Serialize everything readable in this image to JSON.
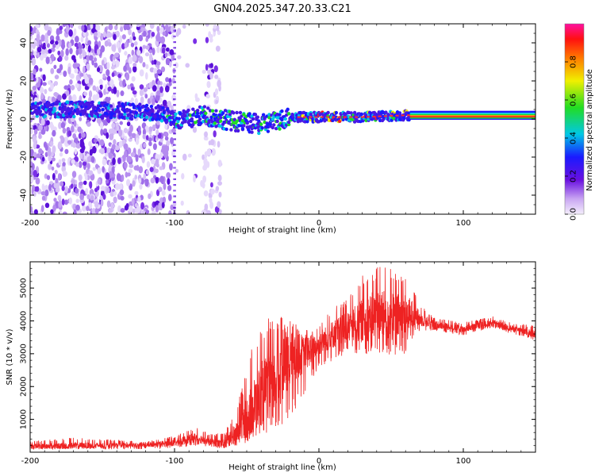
{
  "chart_data": [
    {
      "type": "heatmap",
      "title": "GN04.2025.347.20.33.C21",
      "xlabel": "Height of straight line (km)",
      "ylabel": "Frequency (Hz)",
      "xlim": [
        -200,
        150
      ],
      "ylim": [
        -50,
        50
      ],
      "xticks": [
        "-200",
        "-100",
        "0",
        "100"
      ],
      "xtick_values": [
        -200,
        -100,
        0,
        100
      ],
      "yticks": [
        "40",
        "20",
        "0",
        "-20",
        "-40"
      ],
      "ytick_values": [
        40,
        20,
        0,
        -20,
        -40
      ],
      "colorbar": {
        "label": "Normalized spectral amplitude",
        "range": [
          0,
          1
        ],
        "ticks": [
          "0.0",
          "0.2",
          "0.4",
          "0.6",
          "0.8"
        ],
        "tick_values": [
          0,
          0.2,
          0.4,
          0.6,
          0.8
        ],
        "colormap": "rainbow (violet -> red -> magenta)"
      },
      "features": {
        "noise_region_km": [
          -200,
          -68
        ],
        "trace_frequency_hz": [
          {
            "x": -200,
            "f": 5
          },
          {
            "x": -150,
            "f": 5
          },
          {
            "x": -110,
            "f": 3
          },
          {
            "x": -95,
            "f": -1
          },
          {
            "x": -80,
            "f": 2
          },
          {
            "x": -60,
            "f": -1
          },
          {
            "x": -40,
            "f": -3
          },
          {
            "x": -20,
            "f": 1
          },
          {
            "x": 0,
            "f": 1
          },
          {
            "x": 30,
            "f": 1
          },
          {
            "x": 60,
            "f": 2
          },
          {
            "x": 150,
            "f": 1
          }
        ],
        "steady_band_km": [
          63,
          150
        ]
      }
    },
    {
      "type": "line",
      "xlabel": "Height of straight line (km)",
      "ylabel": "SNR (10 * v/v)",
      "xlim": [
        -200,
        150
      ],
      "ylim": [
        0,
        5800
      ],
      "xticks": [
        "-200",
        "-100",
        "0",
        "100"
      ],
      "xtick_values": [
        -200,
        -100,
        0,
        100
      ],
      "yticks": [
        "5000",
        "4000",
        "3000",
        "2000",
        "1000"
      ],
      "ytick_values": [
        5000,
        4000,
        3000,
        2000,
        1000
      ],
      "series": [
        {
          "name": "SNR",
          "color": "#ee2222",
          "envelope": [
            {
              "x": -200,
              "lo": 80,
              "mean": 180,
              "hi": 330
            },
            {
              "x": -170,
              "lo": 90,
              "mean": 200,
              "hi": 450
            },
            {
              "x": -120,
              "lo": 90,
              "mean": 220,
              "hi": 320
            },
            {
              "x": -100,
              "lo": 100,
              "mean": 280,
              "hi": 500
            },
            {
              "x": -85,
              "lo": 200,
              "mean": 450,
              "hi": 750
            },
            {
              "x": -75,
              "lo": 150,
              "mean": 300,
              "hi": 550
            },
            {
              "x": -65,
              "lo": 100,
              "mean": 250,
              "hi": 600
            },
            {
              "x": -55,
              "lo": 200,
              "mean": 700,
              "hi": 1700
            },
            {
              "x": -45,
              "lo": 400,
              "mean": 1400,
              "hi": 3500
            },
            {
              "x": -40,
              "lo": 500,
              "mean": 1800,
              "hi": 4000
            },
            {
              "x": -30,
              "lo": 700,
              "mean": 2200,
              "hi": 4300
            },
            {
              "x": -20,
              "lo": 900,
              "mean": 2800,
              "hi": 4000
            },
            {
              "x": -10,
              "lo": 1800,
              "mean": 3000,
              "hi": 3800
            },
            {
              "x": 0,
              "lo": 2600,
              "mean": 3300,
              "hi": 3900
            },
            {
              "x": 10,
              "lo": 2800,
              "mean": 3600,
              "hi": 4400
            },
            {
              "x": 20,
              "lo": 3000,
              "mean": 3800,
              "hi": 4700
            },
            {
              "x": 30,
              "lo": 3000,
              "mean": 4000,
              "hi": 5400
            },
            {
              "x": 40,
              "lo": 2900,
              "mean": 4200,
              "hi": 5700
            },
            {
              "x": 50,
              "lo": 2900,
              "mean": 4100,
              "hi": 5600
            },
            {
              "x": 60,
              "lo": 3000,
              "mean": 4150,
              "hi": 5500
            },
            {
              "x": 65,
              "lo": 3500,
              "mean": 4200,
              "hi": 5000
            },
            {
              "x": 70,
              "lo": 3700,
              "mean": 4050,
              "hi": 4500
            },
            {
              "x": 80,
              "lo": 3700,
              "mean": 3900,
              "hi": 4100
            },
            {
              "x": 100,
              "lo": 3550,
              "mean": 3750,
              "hi": 3950
            },
            {
              "x": 120,
              "lo": 3800,
              "mean": 3950,
              "hi": 4150
            },
            {
              "x": 135,
              "lo": 3600,
              "mean": 3750,
              "hi": 3950
            },
            {
              "x": 150,
              "lo": 3400,
              "mean": 3600,
              "hi": 3850
            }
          ]
        }
      ]
    }
  ]
}
